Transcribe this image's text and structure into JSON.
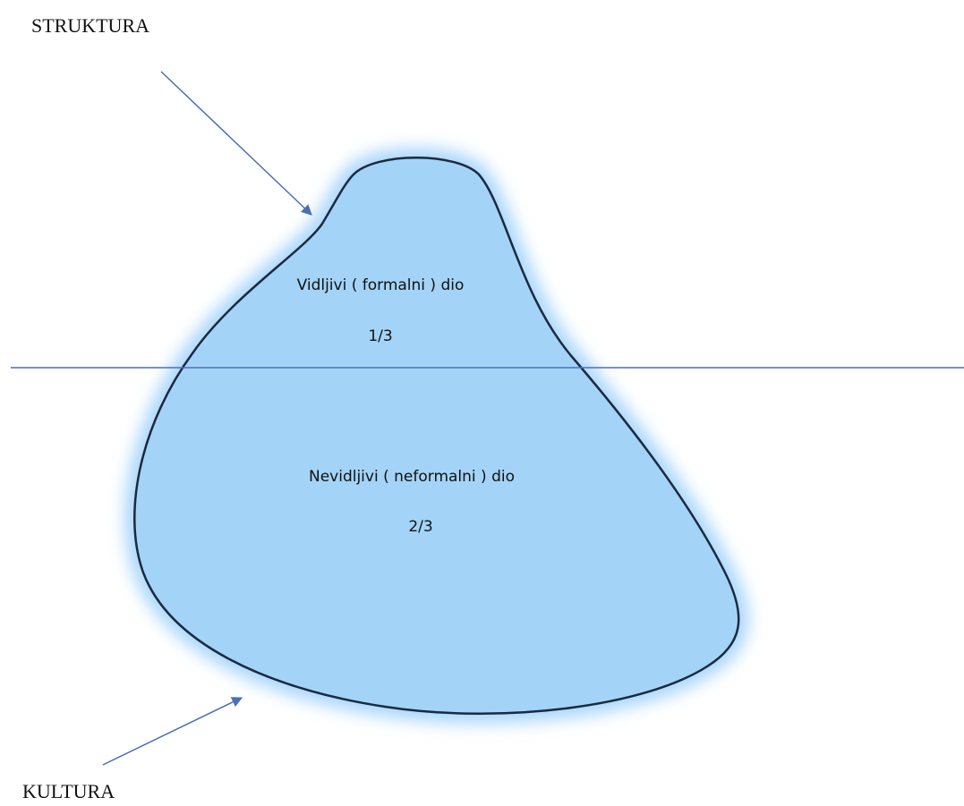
{
  "labels": {
    "top": "STRUKTURA",
    "bottom": "KULTURA"
  },
  "visible": {
    "text": "Vidljivi ( formalni ) dio",
    "fraction": "1/3"
  },
  "invisible": {
    "text": "Nevidljivi ( neformalni ) dio",
    "fraction": "2/3"
  }
}
